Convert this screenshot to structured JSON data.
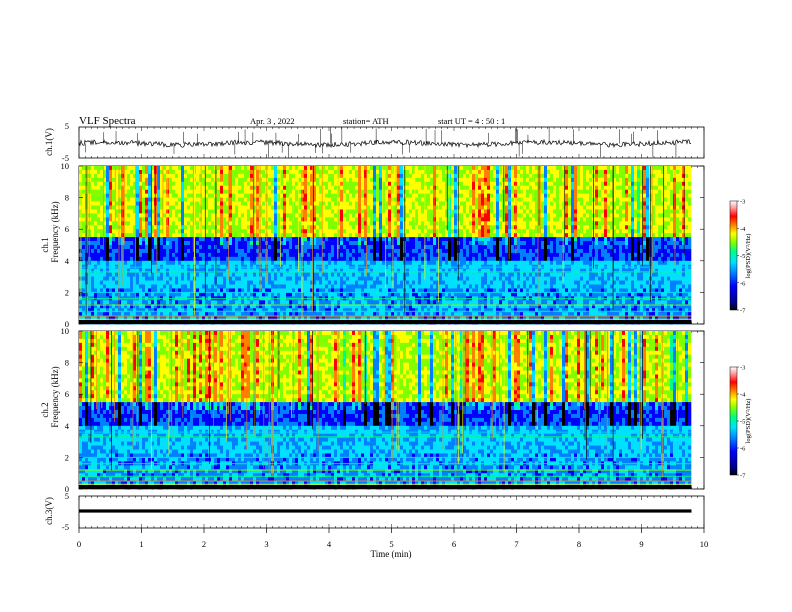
{
  "header": {
    "title": "VLF  Spectra",
    "date": "Apr. 3  , 2022",
    "station": "station= ATH",
    "start_ut": "start  UT  =   4  : 50 : 1"
  },
  "colors": {
    "trace": "#000000",
    "colormap": [
      "#000000",
      "#00007f",
      "#0000ff",
      "#0080ff",
      "#00e0ff",
      "#00ff80",
      "#80ff00",
      "#ffff00",
      "#ff8000",
      "#ff0000",
      "#ff9f9f",
      "#ffffff"
    ]
  },
  "chart_data": [
    {
      "type": "line",
      "ylabel": "ch.1(V)",
      "ylim": [
        -5,
        5
      ],
      "yticks": [
        "5",
        "-5"
      ],
      "xlim": [
        0,
        10
      ],
      "description_values": {
        "baseline": 0,
        "typical_range": [
          -1.5,
          1.5
        ]
      },
      "series": [
        {
          "x_range_min": [
            0,
            9.8
          ],
          "y_baseline": 0
        }
      ]
    },
    {
      "type": "heatmap",
      "ylabel_line1": "ch.1",
      "ylabel_line2": "Frequency  (kHz)",
      "ylim": [
        0,
        10
      ],
      "yticks": [
        "0",
        "2",
        "4",
        "6",
        "8",
        "10"
      ],
      "xlim": [
        0,
        10
      ],
      "data_extent_min": 9.8,
      "colorbar": {
        "label": "log(PSD)(V²/Hz)",
        "range": [
          -7,
          -3
        ],
        "ticks": [
          "-3",
          "-4",
          "-5",
          "-6",
          "-7"
        ]
      }
    },
    {
      "type": "heatmap",
      "ylabel_line1": "ch.2",
      "ylabel_line2": "Frequency  (kHz)",
      "ylim": [
        0,
        10
      ],
      "yticks": [
        "0",
        "2",
        "4",
        "6",
        "8",
        "10"
      ],
      "xlim": [
        0,
        10
      ],
      "data_extent_min": 9.8,
      "colorbar": {
        "label": "log(PSD)(V²/Hz)",
        "range": [
          -7,
          -3
        ],
        "ticks": [
          "-3",
          "-4",
          "-5",
          "-6",
          "-7"
        ]
      }
    },
    {
      "type": "line",
      "ylabel": "ch.3(V)",
      "ylim": [
        -5,
        5
      ],
      "yticks": [
        "5",
        "-5"
      ],
      "xlim": [
        0,
        10
      ],
      "series": [
        {
          "x_range_min": [
            0,
            9.8
          ],
          "y_baseline": 0
        }
      ]
    }
  ],
  "xaxis": {
    "label": "Time  (min)",
    "ticks": [
      "0",
      "1",
      "2",
      "3",
      "4",
      "5",
      "6",
      "7",
      "8",
      "9",
      "10"
    ]
  }
}
